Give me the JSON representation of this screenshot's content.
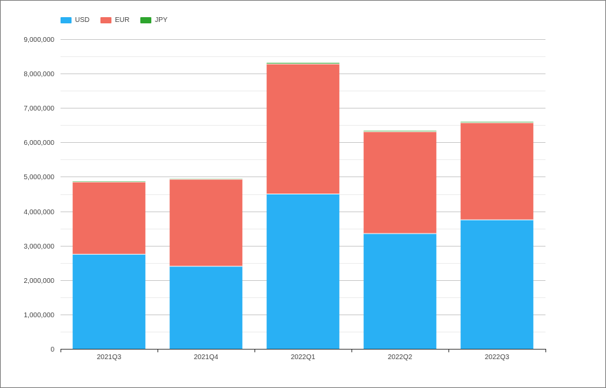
{
  "chart_data": {
    "type": "bar",
    "stacked": true,
    "categories": [
      "2021Q3",
      "2021Q4",
      "2022Q1",
      "2022Q2",
      "2022Q3"
    ],
    "series": [
      {
        "name": "USD",
        "color": "#29b0f4",
        "values": [
          2750000,
          2400000,
          4500000,
          3350000,
          3750000
        ]
      },
      {
        "name": "EUR",
        "color": "#f26d60",
        "values": [
          2100000,
          2530000,
          3780000,
          2960000,
          2820000
        ]
      },
      {
        "name": "JPY",
        "color": "#2ea52e",
        "values": [
          20000,
          15000,
          30000,
          25000,
          25000
        ]
      }
    ],
    "yticks": [
      "0",
      "1,000,000",
      "2,000,000",
      "3,000,000",
      "4,000,000",
      "5,000,000",
      "6,000,000",
      "7,000,000",
      "8,000,000",
      "9,000,000"
    ],
    "ylim": [
      0,
      9000000
    ],
    "legend_position": "top-left",
    "grid": true
  }
}
